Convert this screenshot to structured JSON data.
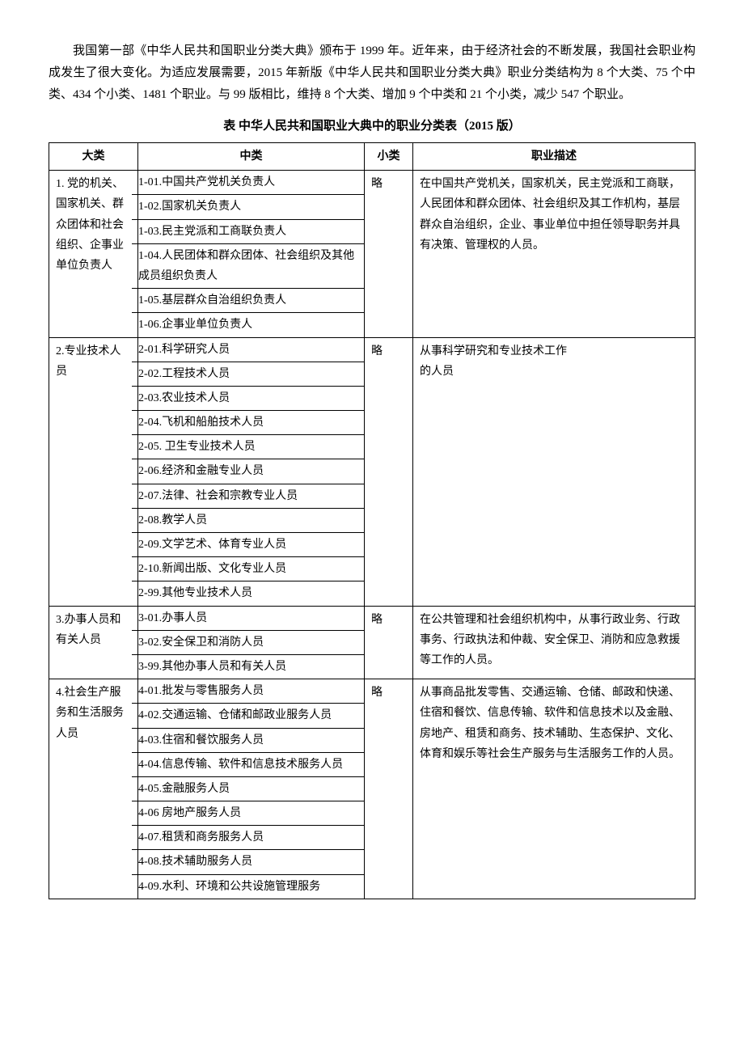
{
  "intro": "我国第一部《中华人民共和国职业分类大典》颁布于 1999 年。近年来，由于经济社会的不断发展，我国社会职业构成发生了很大变化。为适应发展需要，2015 年新版《中华人民共和国职业分类大典》职业分类结构为 8 个大类、75 个中类、434 个小类、1481 个职业。与 99 版相比，维持 8 个大类、增加 9 个中类和 21 个小类，减少 547 个职业。",
  "table_title": "表 中华人民共和国职业大典中的职业分类表（2015 版）",
  "headers": {
    "col1": "大类",
    "col2": "中类",
    "col3": "小类",
    "col4": "职业描述"
  },
  "rows": [
    {
      "major": "1. 党的机关、国家机关、群众团体和社会组织、企事业单位负责人",
      "mids": [
        "1-01.中国共产党机关负责人",
        "1-02.国家机关负责人",
        "1-03.民主党派和工商联负责人",
        "1-04.人民团体和群众团体、社会组织及其他成员组织负责人",
        "1-05.基层群众自治组织负责人",
        "1-06.企事业单位负责人"
      ],
      "minor": "略",
      "desc": "在中国共产党机关，国家机关，民主党派和工商联，人民团体和群众团体、社会组织及其工作机构，基层群众自治组织，企业、事业单位中担任领导职务并具有决策、管理权的人员。"
    },
    {
      "major": "2.专业技术人员",
      "mids": [
        "2-01.科学研究人员",
        "2-02.工程技术人员",
        "2-03.农业技术人员",
        "2-04.飞机和船舶技术人员",
        "2-05. 卫生专业技术人员",
        "2-06.经济和金融专业人员",
        "2-07.法律、社会和宗教专业人员",
        "2-08.教学人员",
        "2-09.文学艺术、体育专业人员",
        "2-10.新闻出版、文化专业人员",
        "2-99.其他专业技术人员"
      ],
      "minor": "略",
      "desc": "从事科学研究和专业技术工作\n的人员"
    },
    {
      "major": "3.办事人员和有关人员",
      "mids": [
        "3-01.办事人员",
        "3-02.安全保卫和消防人员",
        "3-99.其他办事人员和有关人员"
      ],
      "minor": "略",
      "desc": "在公共管理和社会组织机构中，从事行政业务、行政事务、行政执法和仲裁、安全保卫、消防和应急救援等工作的人员。"
    },
    {
      "major": "4.社会生产服务和生活服务人员",
      "mids": [
        "4-01.批发与零售服务人员",
        "4-02.交通运输、仓储和邮政业服务人员",
        "4-03.住宿和餐饮服务人员",
        "4-04.信息传输、软件和信息技术服务人员",
        "4-05.金融服务人员",
        "4-06 房地产服务人员",
        "4-07.租赁和商务服务人员",
        "4-08.技术辅助服务人员",
        "4-09.水利、环境和公共设施管理服务"
      ],
      "minor": "略",
      "desc": "从事商品批发零售、交通运输、仓储、邮政和快递、住宿和餐饮、信息传输、软件和信息技术以及金融、房地产、租赁和商务、技术辅助、生态保护、文化、体育和娱乐等社会生产服务与生活服务工作的人员。"
    }
  ]
}
